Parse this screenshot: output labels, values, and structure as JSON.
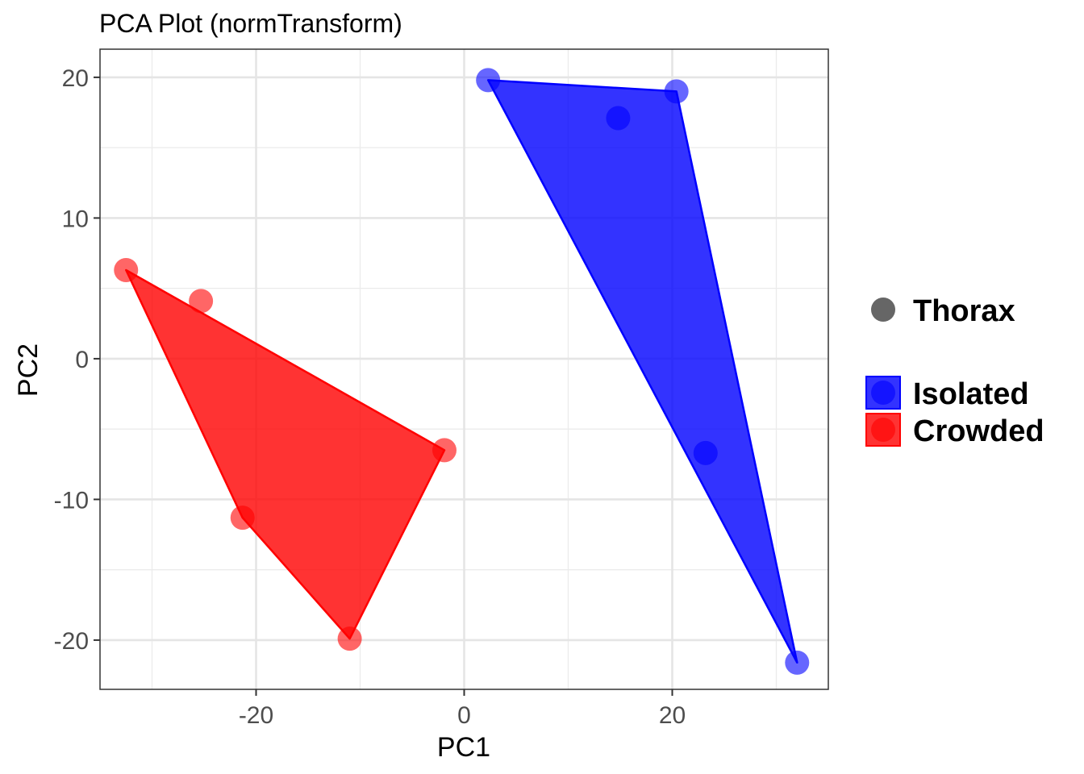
{
  "chart_data": {
    "type": "scatter",
    "title": "PCA Plot (normTransform)",
    "xlabel": "PC1",
    "ylabel": "PC2",
    "xlim": [
      -35,
      35
    ],
    "ylim": [
      -23.5,
      22
    ],
    "x_ticks": [
      -20,
      0,
      20
    ],
    "x_tick_labels": [
      "-20",
      "0",
      "20"
    ],
    "y_ticks": [
      -20,
      -10,
      0,
      10,
      20
    ],
    "y_tick_labels": [
      "-20",
      "-10",
      "0",
      "10",
      "20"
    ],
    "grid": true,
    "legend_position": "right",
    "shape_legend": [
      {
        "label": "Thorax",
        "color": "#666666"
      }
    ],
    "series": [
      {
        "name": "Isolated",
        "color": "#0000ff",
        "points": [
          {
            "x": 2.3,
            "y": 19.8
          },
          {
            "x": 14.8,
            "y": 17.1
          },
          {
            "x": 20.4,
            "y": 19.0
          },
          {
            "x": 23.2,
            "y": -6.7
          },
          {
            "x": 32.0,
            "y": -21.6
          }
        ],
        "hull": [
          [
            2.3,
            19.8
          ],
          [
            20.4,
            19.0
          ],
          [
            32.0,
            -21.6
          ]
        ]
      },
      {
        "name": "Crowded",
        "color": "#ff0000",
        "points": [
          {
            "x": -32.5,
            "y": 6.3
          },
          {
            "x": -25.3,
            "y": 4.1
          },
          {
            "x": -21.3,
            "y": -11.3
          },
          {
            "x": -11.0,
            "y": -19.9
          },
          {
            "x": -1.9,
            "y": -6.5
          }
        ],
        "hull": [
          [
            -32.5,
            6.3
          ],
          [
            -1.9,
            -6.5
          ],
          [
            -11.0,
            -19.9
          ],
          [
            -21.3,
            -11.3
          ]
        ]
      }
    ]
  }
}
